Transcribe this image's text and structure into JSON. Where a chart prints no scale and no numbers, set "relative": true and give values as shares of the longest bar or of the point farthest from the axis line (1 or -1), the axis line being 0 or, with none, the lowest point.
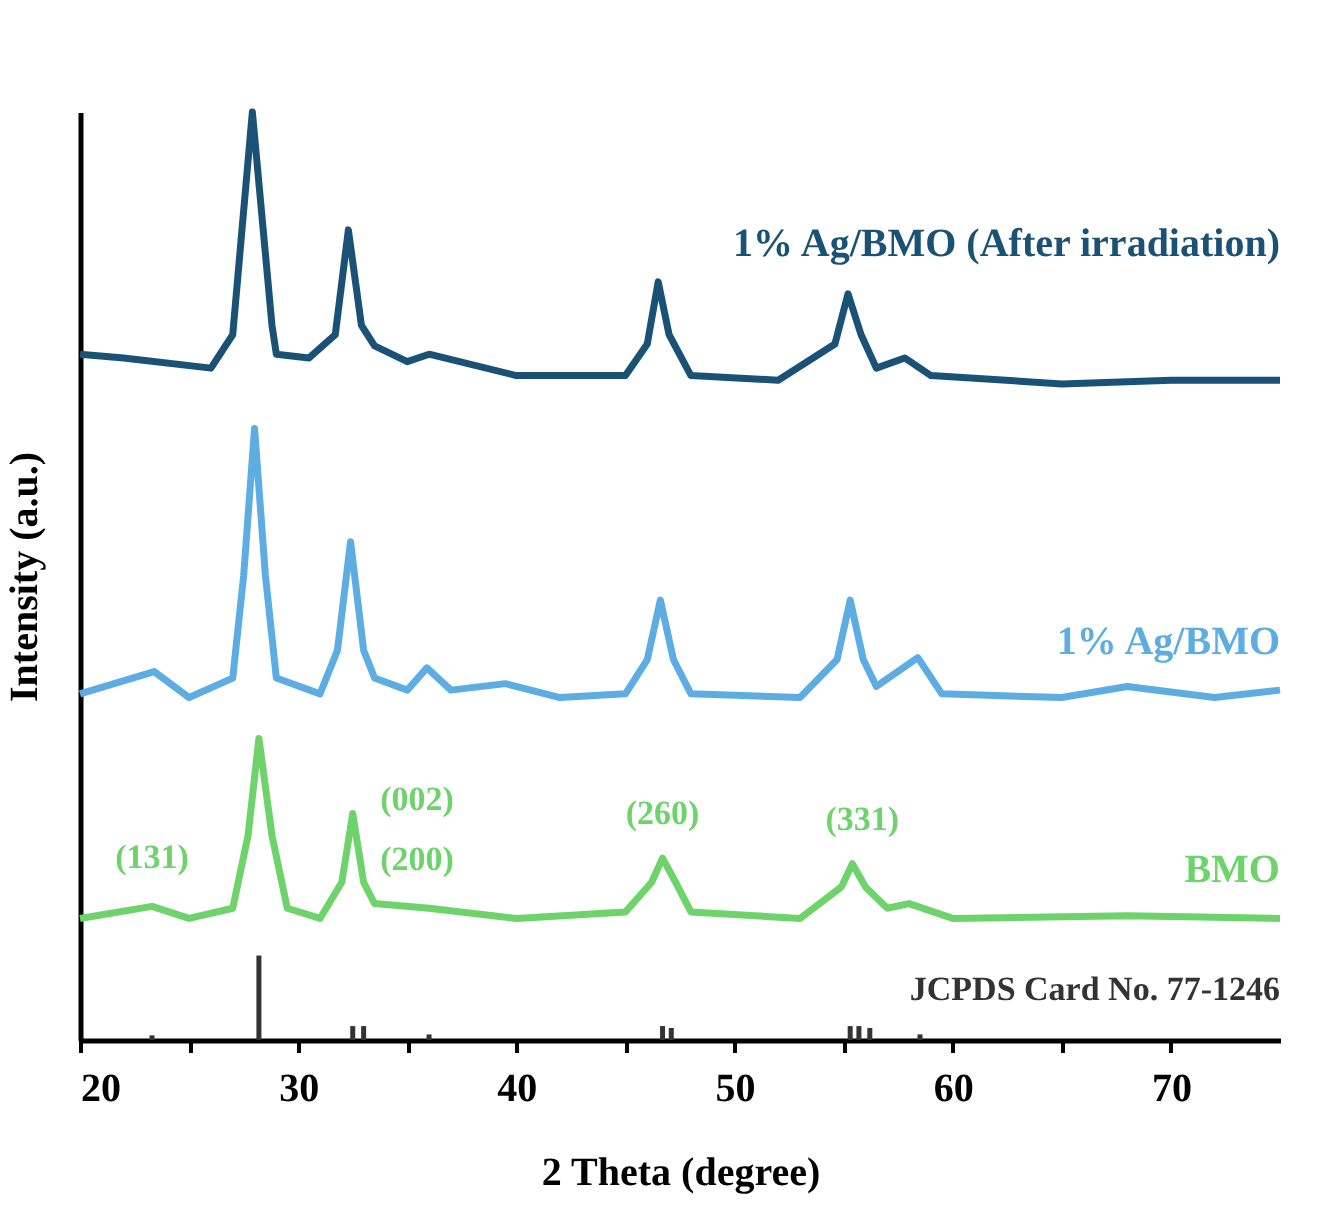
{
  "chart_data": {
    "type": "line",
    "relative": true,
    "xlabel": "2 Theta (degree)",
    "ylabel": "Intensity (a.u.)",
    "xlim": [
      20,
      75
    ],
    "xticks": [
      20,
      {
        "value": 25,
        "label": null
      },
      30,
      {
        "value": 35,
        "label": null
      },
      40,
      {
        "value": 45,
        "label": null
      },
      50,
      {
        "value": 55,
        "label": null
      },
      60,
      {
        "value": 65,
        "label": null
      },
      70
    ],
    "grid": false,
    "tick_labels": "x",
    "line_style": "solid",
    "marker": "none",
    "series": [
      {
        "name": "1% Ag/BMO (After irradiation)",
        "color": "#1a5276",
        "x": [
          20,
          22,
          26,
          27,
          27.9,
          28.8,
          29,
          30.5,
          31.7,
          32.3,
          32.9,
          33.5,
          35,
          36,
          40,
          45,
          46,
          46.5,
          47,
          48,
          52,
          54.6,
          55.2,
          55.8,
          56.5,
          57.8,
          59,
          65,
          70,
          75
        ],
        "values": [
          0.739,
          0.735,
          0.724,
          0.76,
          1.0,
          0.77,
          0.739,
          0.735,
          0.76,
          0.873,
          0.77,
          0.748,
          0.731,
          0.739,
          0.716,
          0.716,
          0.75,
          0.817,
          0.76,
          0.716,
          0.711,
          0.75,
          0.804,
          0.76,
          0.724,
          0.735,
          0.716,
          0.707,
          0.711,
          0.711
        ]
      },
      {
        "name": "1% Ag/BMO",
        "color": "#5dade2",
        "x": [
          20,
          23.4,
          25,
          27,
          27.5,
          28,
          28.5,
          29,
          31,
          31.8,
          32.4,
          33,
          33.5,
          35,
          35.9,
          37,
          39.5,
          42,
          45,
          46,
          46.6,
          47.2,
          48,
          53,
          54.7,
          55.3,
          55.9,
          56.5,
          58.4,
          59.5,
          65,
          68,
          72,
          75
        ],
        "values": [
          0.373,
          0.397,
          0.369,
          0.39,
          0.5,
          0.659,
          0.5,
          0.39,
          0.373,
          0.42,
          0.537,
          0.42,
          0.39,
          0.377,
          0.401,
          0.377,
          0.384,
          0.369,
          0.373,
          0.41,
          0.474,
          0.41,
          0.373,
          0.369,
          0.41,
          0.474,
          0.41,
          0.381,
          0.412,
          0.373,
          0.369,
          0.381,
          0.369,
          0.377
        ]
      },
      {
        "name": "BMO",
        "color": "#6dd36a",
        "x": [
          20,
          23.3,
          25,
          27,
          27.7,
          28.2,
          28.8,
          29.5,
          31,
          32,
          32.5,
          33,
          33.5,
          36,
          40,
          45,
          46.2,
          46.7,
          47.3,
          48,
          53,
          54.9,
          55.4,
          56,
          57,
          58,
          60,
          68,
          75
        ],
        "values": [
          0.131,
          0.144,
          0.131,
          0.142,
          0.22,
          0.325,
          0.22,
          0.142,
          0.131,
          0.17,
          0.244,
          0.17,
          0.147,
          0.142,
          0.131,
          0.138,
          0.17,
          0.196,
          0.17,
          0.138,
          0.131,
          0.165,
          0.19,
          0.165,
          0.142,
          0.147,
          0.131,
          0.134,
          0.131
        ]
      },
      {
        "name": "JCPDS Card No. 77-1246",
        "type": "bar",
        "color": "#333333",
        "x": [
          23.3,
          28.2,
          32.5,
          33,
          36,
          46.7,
          47.1,
          55.3,
          55.7,
          56.2,
          58.5
        ],
        "values": [
          0.005,
          0.091,
          0.015,
          0.015,
          0.006,
          0.015,
          0.013,
          0.015,
          0.015,
          0.013,
          0.006
        ]
      }
    ],
    "annotations": [
      {
        "text": "(131)",
        "x": 23.3,
        "y": 0.144
      },
      {
        "text": "(002)",
        "x": 36,
        "y": 0.142
      },
      {
        "text": "(200)",
        "x": 36,
        "y": 0.142
      },
      {
        "text": "(260)",
        "x": 46.7,
        "y": 0.196
      },
      {
        "text": "(331)",
        "x": 55.4,
        "y": 0.19
      }
    ]
  }
}
